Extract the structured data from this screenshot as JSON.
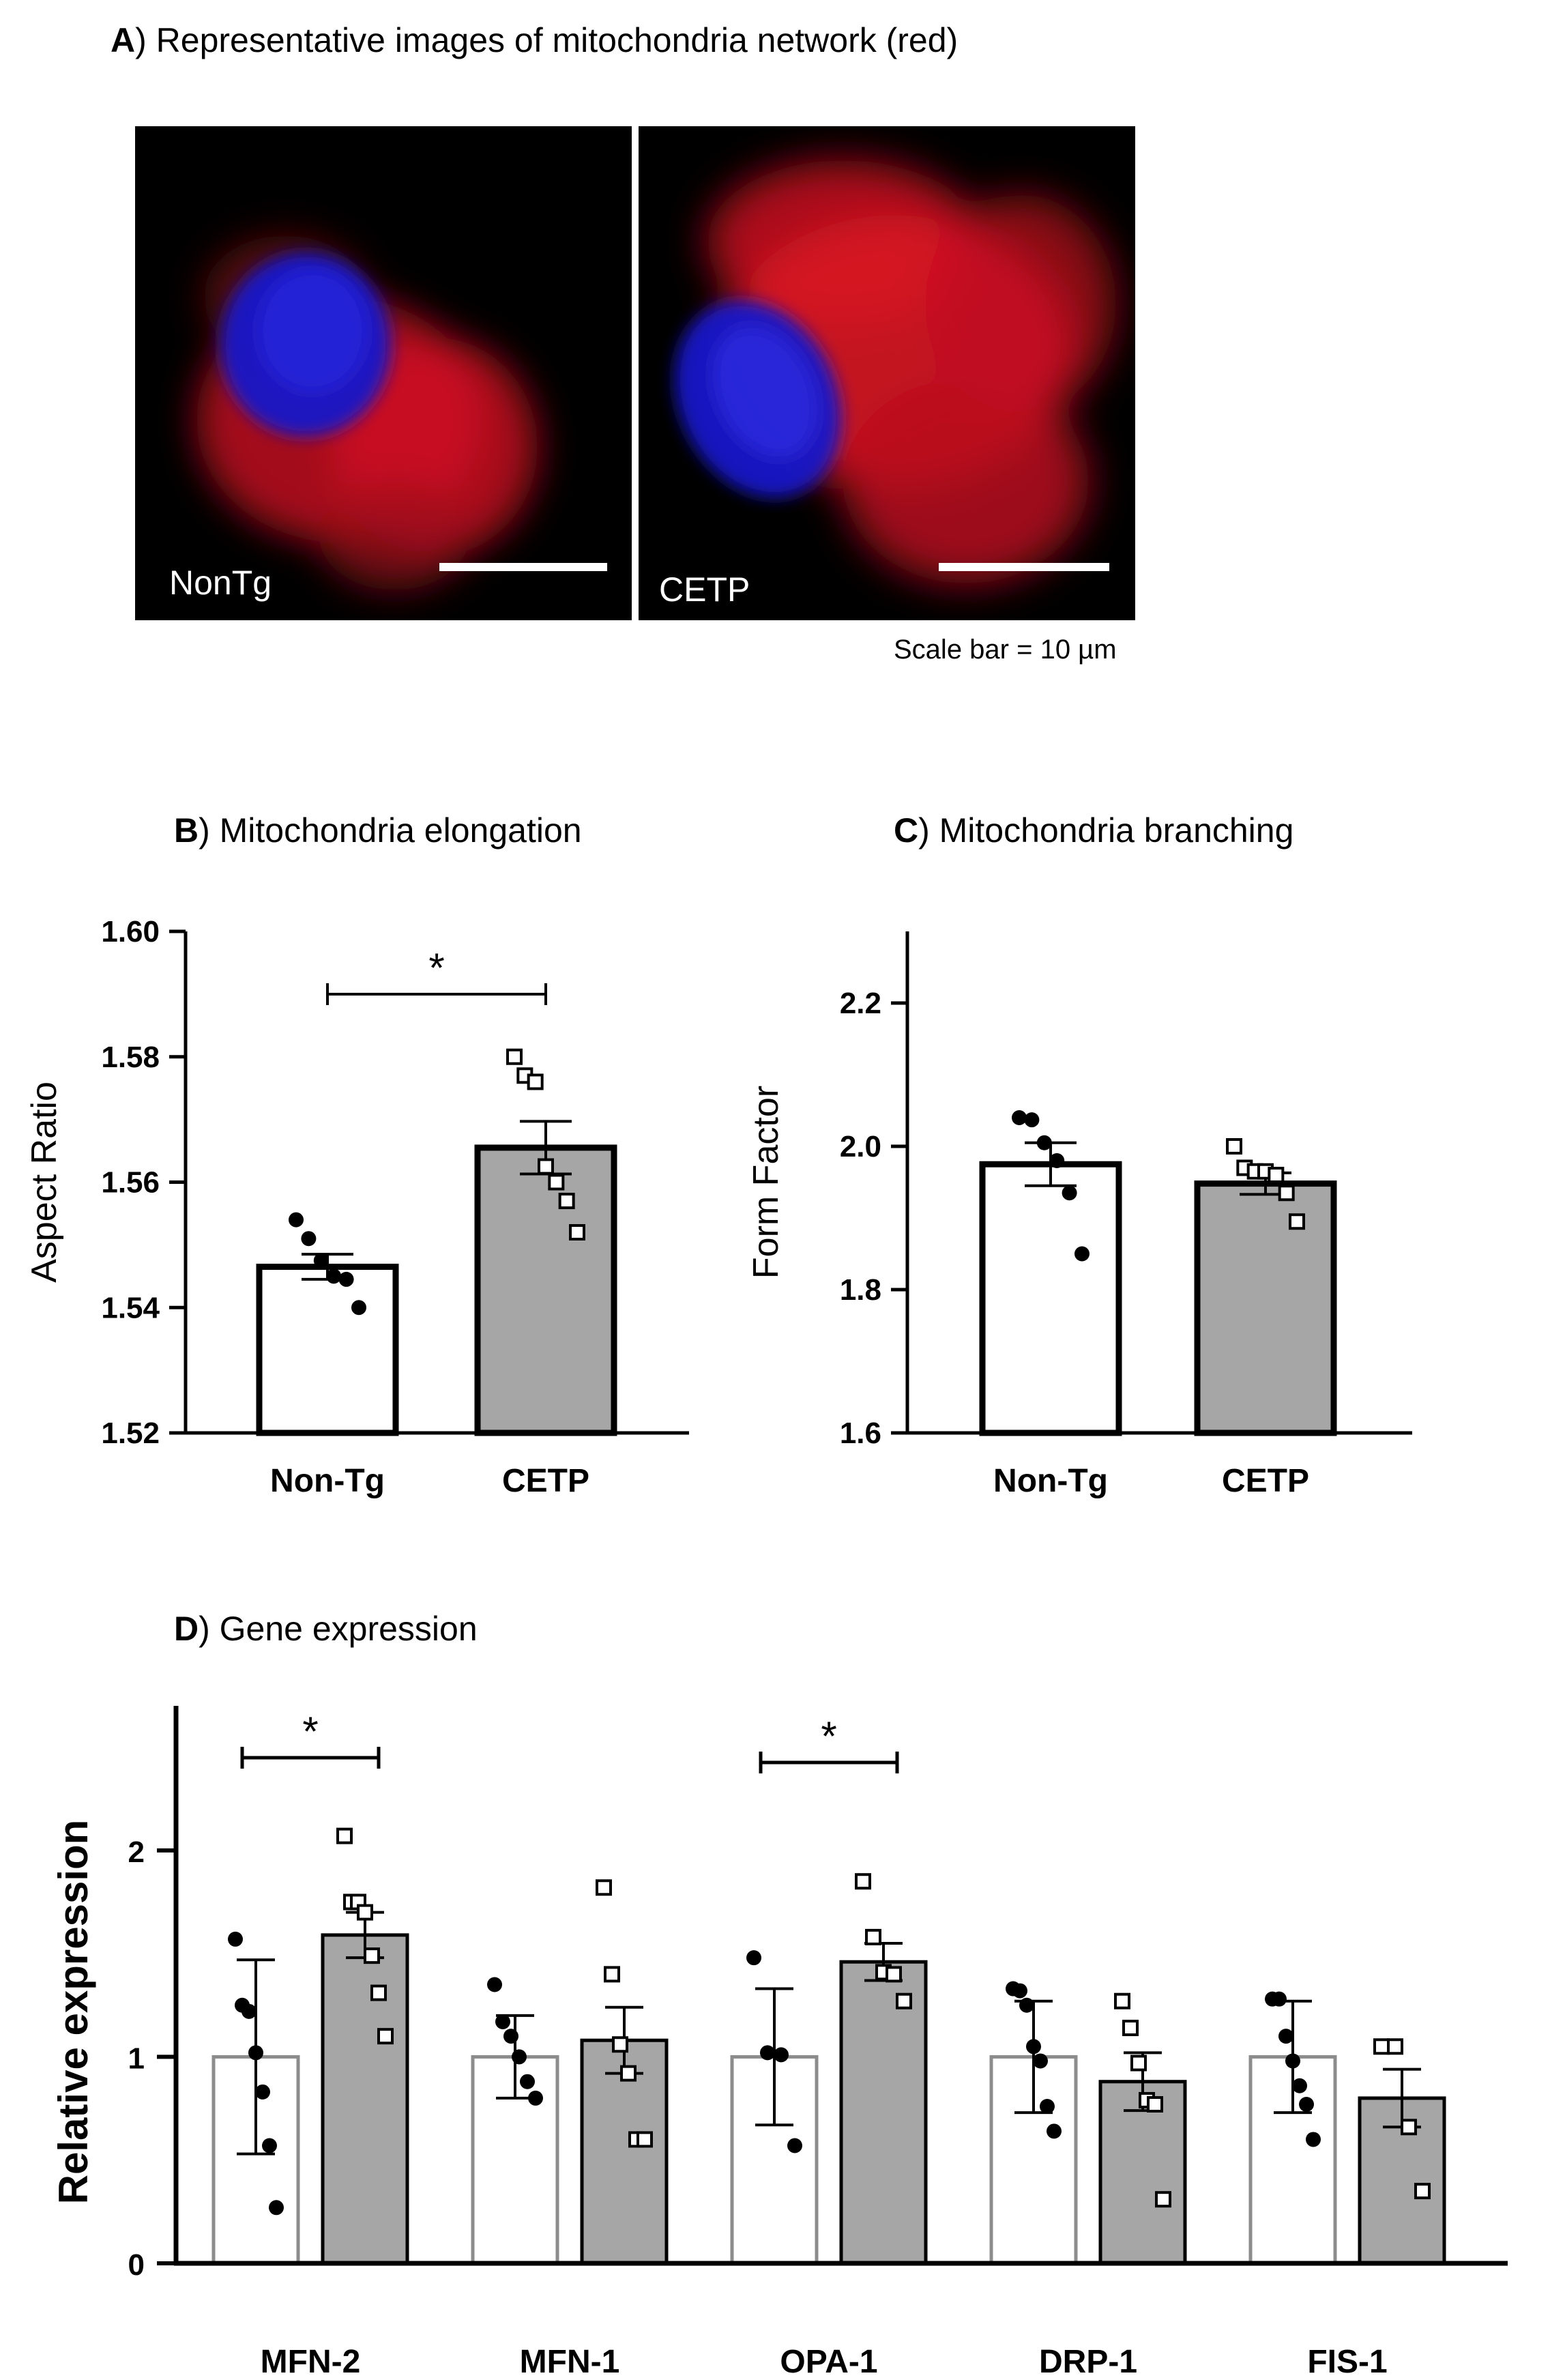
{
  "panel_a": {
    "letter": "A",
    "title": ") Representative images of mitochondria network (red)",
    "images": [
      {
        "label": "NonTg"
      },
      {
        "label": "CETP"
      }
    ],
    "scale_caption": "Scale bar = 10 µm",
    "colors": {
      "background": "#000000",
      "mitochondria": "#e0102a",
      "nucleus": "#1a1ad8",
      "scale_bar": "#ffffff"
    }
  },
  "chart_data": [
    {
      "id": "B",
      "type": "bar",
      "letter": "B",
      "title": ") Mitochondria elongation",
      "ylabel": "Aspect Ratio",
      "xlabel": "",
      "ylim": [
        1.52,
        1.6
      ],
      "yticks": [
        "1.52",
        "1.54",
        "1.56",
        "1.58",
        "1.60"
      ],
      "categories": [
        "Non-Tg",
        "CETP"
      ],
      "values": [
        1.5465,
        1.5655
      ],
      "sem": [
        0.002,
        0.0042
      ],
      "points": [
        [
          1.554,
          1.551,
          1.5475,
          1.545,
          1.5445,
          1.54
        ],
        [
          1.58,
          1.577,
          1.576,
          1.5625,
          1.56,
          1.557,
          1.552
        ]
      ],
      "bar_colors": [
        "#ffffff",
        "#a6a6a6"
      ],
      "markers": [
        "filled-circle",
        "open-square"
      ],
      "significance": [
        {
          "between": [
            "Non-Tg",
            "CETP"
          ],
          "label": "*"
        }
      ]
    },
    {
      "id": "C",
      "type": "bar",
      "letter": "C",
      "title": ") Mitochondria branching",
      "ylabel": "Form Factor",
      "xlabel": "",
      "ylim": [
        1.6,
        2.3
      ],
      "yticks": [
        "1.6",
        "1.8",
        "2.0",
        "2.2"
      ],
      "categories": [
        "Non-Tg",
        "CETP"
      ],
      "values": [
        1.975,
        1.948
      ],
      "sem": [
        0.03,
        0.015
      ],
      "points": [
        [
          2.04,
          2.037,
          2.005,
          1.98,
          1.935,
          1.85
        ],
        [
          2.0,
          1.97,
          1.965,
          1.965,
          1.96,
          1.935,
          1.895
        ]
      ],
      "bar_colors": [
        "#ffffff",
        "#a6a6a6"
      ],
      "markers": [
        "filled-circle",
        "open-square"
      ],
      "significance": []
    },
    {
      "id": "D",
      "type": "bar",
      "letter": "D",
      "title": ") Gene expression",
      "ylabel": "Relative expression",
      "xlabel": "",
      "ylim": [
        0,
        2.7
      ],
      "yticks": [
        "0",
        "1",
        "2"
      ],
      "categories": [
        "MFN-2",
        "MFN-1",
        "OPA-1",
        "DRP-1",
        "FIS-1"
      ],
      "series": [
        {
          "values": [
            1.0,
            1.0,
            1.0,
            1.0,
            1.0
          ],
          "err": [
            0.47,
            0.2,
            0.33,
            0.27,
            0.27
          ],
          "points": [
            [
              1.57,
              1.25,
              1.22,
              1.02,
              0.83,
              0.57,
              0.27
            ],
            [
              1.35,
              1.17,
              1.1,
              1.0,
              0.88,
              0.8
            ],
            [
              1.48,
              1.02,
              1.01,
              0.57
            ],
            [
              1.33,
              1.32,
              1.25,
              1.05,
              0.98,
              0.76,
              0.64
            ],
            [
              1.28,
              1.28,
              1.1,
              0.98,
              0.86,
              0.77,
              0.6
            ]
          ],
          "color": "#ffffff",
          "marker": "filled-circle"
        },
        {
          "values": [
            1.59,
            1.08,
            1.46,
            0.88,
            0.8
          ],
          "err": [
            0.11,
            0.16,
            0.09,
            0.14,
            0.14
          ],
          "points": [
            [
              2.07,
              1.75,
              1.75,
              1.7,
              1.49,
              1.31,
              1.1
            ],
            [
              1.82,
              1.4,
              1.06,
              0.92,
              0.6,
              0.6
            ],
            [
              1.85,
              1.58,
              1.41,
              1.4,
              1.27
            ],
            [
              1.27,
              1.14,
              0.97,
              0.79,
              0.77,
              0.31
            ],
            [
              1.05,
              1.05,
              0.66,
              0.35
            ]
          ],
          "color": "#a6a6a6",
          "marker": "open-square"
        }
      ],
      "significance": [
        {
          "category": "MFN-2",
          "label": "*"
        },
        {
          "category": "OPA-1",
          "label": "*"
        }
      ]
    }
  ]
}
